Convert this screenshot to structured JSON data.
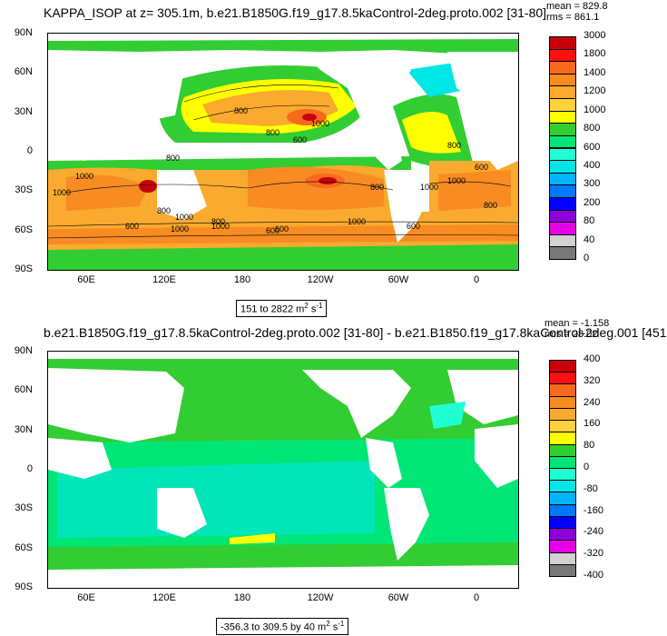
{
  "panel1": {
    "title": "KAPPA_ISOP at z= 305.1m, b.e21.B1850G.f19_g17.8.5kaControl-2deg.proto.002 [31-80]",
    "mean": "mean = 829.8",
    "rms": "rms = 861.1",
    "range_text": "151 to 2822 m",
    "range_sup": "2",
    "range_tail": " s",
    "range_tail_sup": "-1",
    "colorbar_labels": [
      "3000",
      "1800",
      "1400",
      "1200",
      "1000",
      "800",
      "600",
      "400",
      "300",
      "200",
      "80",
      "40",
      "0"
    ],
    "colorbar_colors": [
      "#c8000a",
      "#ff1010",
      "#f76a1e",
      "#f88c22",
      "#faaa2e",
      "#ffd23c",
      "#ffff00",
      "#32cd32",
      "#00e676",
      "#20ffd2",
      "#00e6e6",
      "#00b4ff",
      "#0078ff",
      "#0000ff",
      "#8c00dc",
      "#e600e6",
      "#d2d2d2",
      "#787878"
    ],
    "contour_labels": [
      "800",
      "1000",
      "800",
      "800",
      "600",
      "1000",
      "1000",
      "1000",
      "800",
      "600",
      "800",
      "1000",
      "1000",
      "600",
      "1000",
      "800",
      "1000",
      "1000",
      "800",
      "800",
      "600",
      "600",
      "600"
    ]
  },
  "panel2": {
    "title": "b.e21.B1850G.f19_g17.8.5kaControl-2deg.proto.002 [31-80] - b.e21.B1850.f19_g17.8kaControl-2deg.001 [451",
    "mean": "mean = -1.158",
    "rms": "rms = 28.02",
    "range_text": "-356.3 to 309.5 by 40 m",
    "range_sup": "2",
    "range_tail": " s",
    "range_tail_sup": "-1",
    "colorbar_labels": [
      "400",
      "320",
      "240",
      "160",
      "80",
      "0",
      "-80",
      "-160",
      "-240",
      "-320",
      "-400"
    ],
    "colorbar_colors": [
      "#c8000a",
      "#ff1010",
      "#f76a1e",
      "#f88c22",
      "#faaa2e",
      "#ffd23c",
      "#ffff00",
      "#32cd32",
      "#00e676",
      "#20ffd2",
      "#00e6e6",
      "#00b4ff",
      "#0078ff",
      "#0000ff",
      "#8c00dc",
      "#e600e6",
      "#d2d2d2",
      "#787878"
    ]
  },
  "axes": {
    "y_ticks": [
      "90N",
      "60N",
      "30N",
      "0",
      "30S",
      "60S",
      "90S"
    ],
    "x_ticks": [
      "60E",
      "120E",
      "180",
      "120W",
      "60W",
      "0"
    ]
  },
  "chart_data": [
    {
      "type": "heatmap",
      "title": "KAPPA_ISOP at z= 305.1m, b.e21.B1850G.f19_g17.8.5kaControl-2deg.proto.002 [31-80]",
      "units": "m2 s-1",
      "min": 151,
      "max": 2822,
      "mean": 829.8,
      "rms": 861.1,
      "ylim": [
        "90S",
        "90N"
      ],
      "levels": [
        0,
        40,
        80,
        200,
        300,
        400,
        600,
        800,
        1000,
        1200,
        1400,
        1800,
        3000
      ]
    },
    {
      "type": "heatmap",
      "title": "b.e21.B1850G.f19_g17.8.5kaControl-2deg.proto.002 [31-80] - b.e21.B1850.f19_g17.8kaControl-2deg.001 [451",
      "units": "m2 s-1",
      "min": -356.3,
      "max": 309.5,
      "interval": 40,
      "mean": -1.158,
      "rms": 28.02,
      "levels": [
        -400,
        -320,
        -240,
        -160,
        -80,
        0,
        80,
        160,
        240,
        320,
        400
      ]
    }
  ]
}
